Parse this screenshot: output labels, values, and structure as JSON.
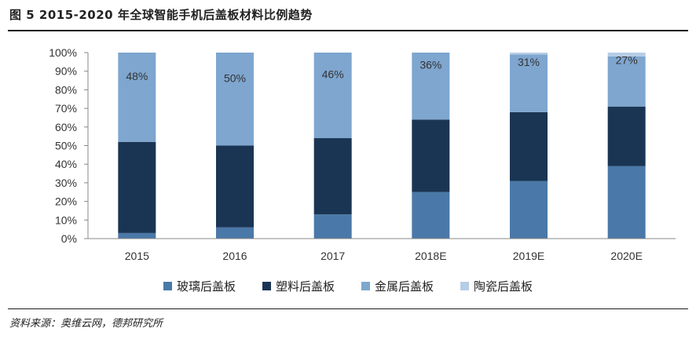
{
  "figure": {
    "title": "图 5 2015-2020 年全球智能手机后盖板材料比例趋势",
    "source": "资料来源：奥维云网，德邦研究所"
  },
  "chart_data": {
    "type": "bar",
    "stacked": true,
    "categories": [
      "2015",
      "2016",
      "2017",
      "2018E",
      "2019E",
      "2020E"
    ],
    "series": [
      {
        "name": "玻璃后盖板",
        "color": "#4a78a8",
        "values": [
          3,
          6,
          13,
          25,
          31,
          39
        ]
      },
      {
        "name": "塑料后盖板",
        "color": "#1a3554",
        "values": [
          49,
          44,
          41,
          39,
          37,
          32
        ]
      },
      {
        "name": "金属后盖板",
        "color": "#7ea6cf",
        "values": [
          48,
          50,
          46,
          36,
          31,
          27
        ]
      },
      {
        "name": "陶瓷后盖板",
        "color": "#b6cde6",
        "values": [
          0,
          0,
          0,
          0,
          1,
          2
        ]
      }
    ],
    "data_labels": {
      "series": "金属后盖板",
      "labels": [
        "48%",
        "50%",
        "46%",
        "36%",
        "31%",
        "27%"
      ]
    },
    "y_ticks": [
      "0%",
      "10%",
      "20%",
      "30%",
      "40%",
      "50%",
      "60%",
      "70%",
      "80%",
      "90%",
      "100%"
    ],
    "ylim": [
      0,
      100
    ],
    "grid": false,
    "legend_position": "bottom"
  }
}
